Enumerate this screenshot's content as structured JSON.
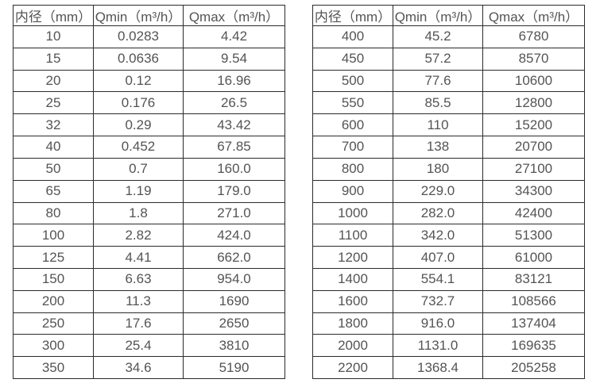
{
  "page": {
    "background_color": "#ffffff",
    "text_color": "#545454",
    "border_color": "#2b2b2b"
  },
  "tables": [
    {
      "name": "small-diameter-flow-table",
      "headers": [
        "内径（mm）",
        "Qmin（m³/h）",
        "Qmax（m³/h）"
      ],
      "rows": [
        [
          "10",
          "0.0283",
          "4.42"
        ],
        [
          "15",
          "0.0636",
          "9.54"
        ],
        [
          "20",
          "0.12",
          "16.96"
        ],
        [
          "25",
          "0.176",
          "26.5"
        ],
        [
          "32",
          "0.29",
          "43.42"
        ],
        [
          "40",
          "0.452",
          "67.85"
        ],
        [
          "50",
          "0.7",
          "160.0"
        ],
        [
          "65",
          "1.19",
          "179.0"
        ],
        [
          "80",
          "1.8",
          "271.0"
        ],
        [
          "100",
          "2.82",
          "424.0"
        ],
        [
          "125",
          "4.41",
          "662.0"
        ],
        [
          "150",
          "6.63",
          "954.0"
        ],
        [
          "200",
          "11.3",
          "1690"
        ],
        [
          "250",
          "17.6",
          "2650"
        ],
        [
          "300",
          "25.4",
          "3810"
        ],
        [
          "350",
          "34.6",
          "5190"
        ]
      ]
    },
    {
      "name": "large-diameter-flow-table",
      "headers": [
        "内径（mm）",
        "Qmin（m³/h）",
        "Qmax（m³/h）"
      ],
      "rows": [
        [
          "400",
          "45.2",
          "6780"
        ],
        [
          "450",
          "57.2",
          "8570"
        ],
        [
          "500",
          "77.6",
          "10600"
        ],
        [
          "550",
          "85.5",
          "12800"
        ],
        [
          "600",
          "110",
          "15200"
        ],
        [
          "700",
          "138",
          "20700"
        ],
        [
          "800",
          "180",
          "27100"
        ],
        [
          "900",
          "229.0",
          "34300"
        ],
        [
          "1000",
          "282.0",
          "42400"
        ],
        [
          "1100",
          "342.0",
          "51300"
        ],
        [
          "1200",
          "407.0",
          "61000"
        ],
        [
          "1400",
          "554.1",
          "83121"
        ],
        [
          "1600",
          "732.7",
          "108566"
        ],
        [
          "1800",
          "916.0",
          "137404"
        ],
        [
          "2000",
          "1131.0",
          "169635"
        ],
        [
          "2200",
          "1368.4",
          "205258"
        ]
      ]
    }
  ]
}
